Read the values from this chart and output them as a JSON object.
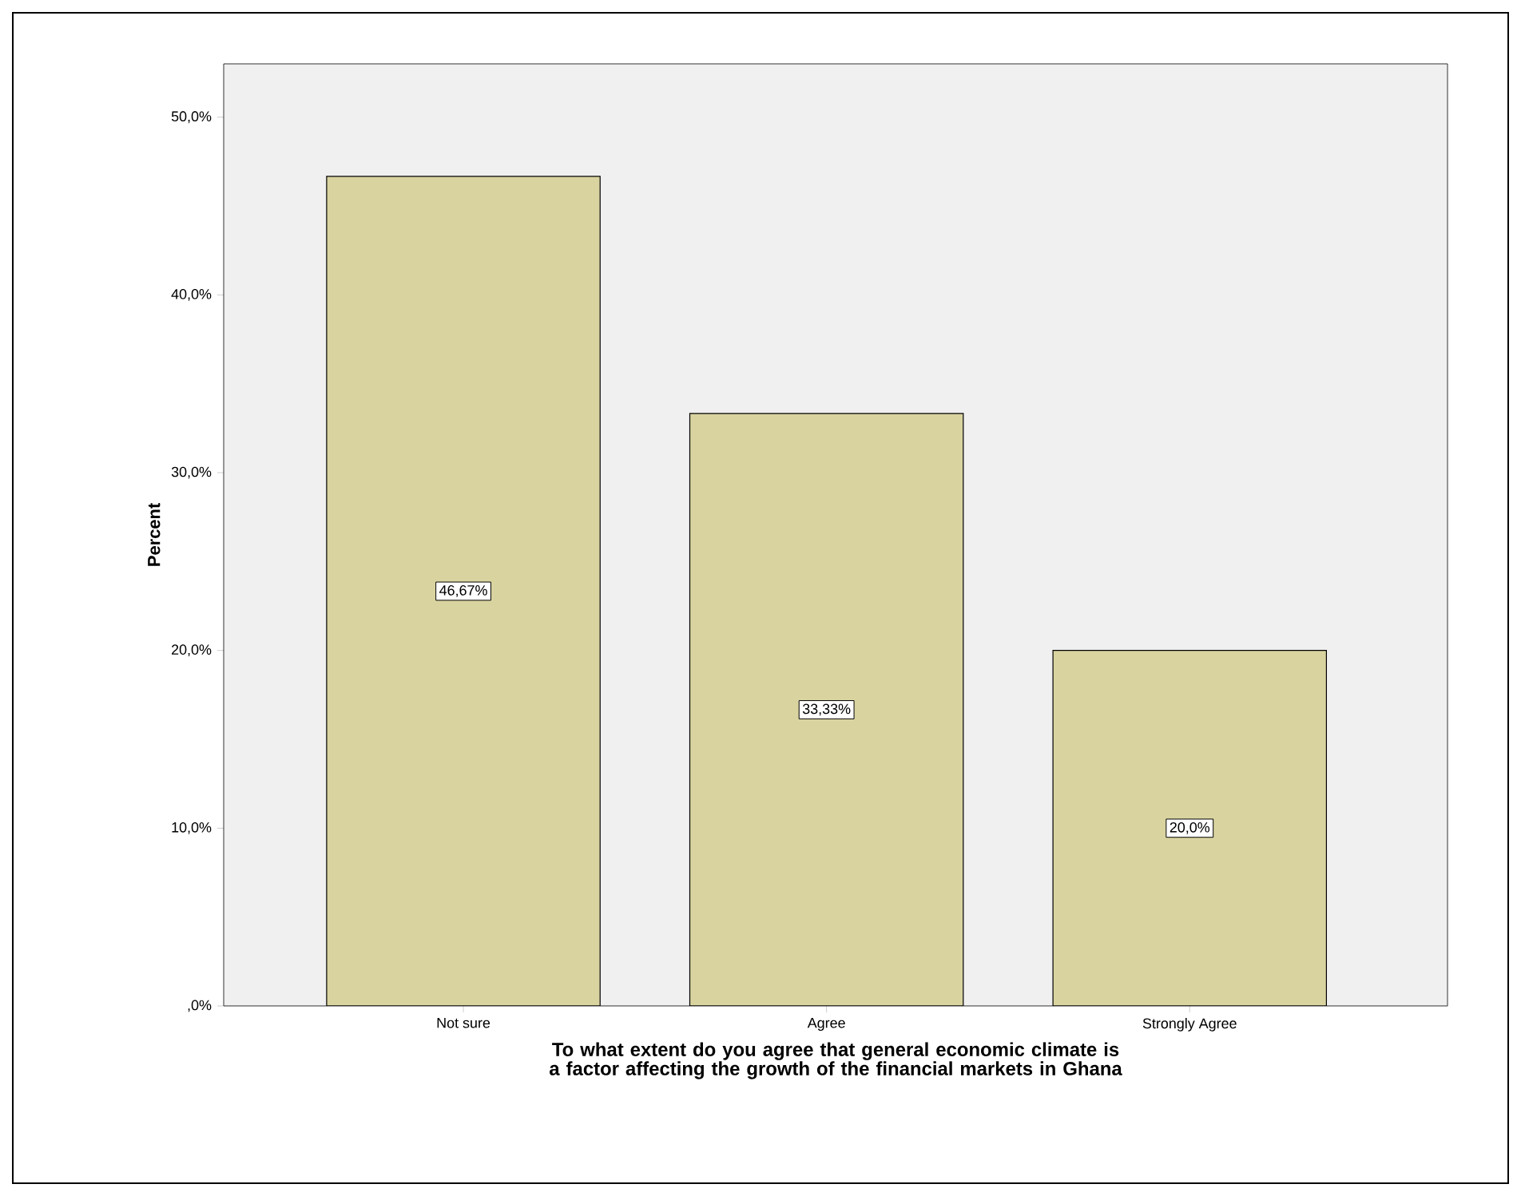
{
  "chart_data": {
    "type": "bar",
    "xlabel": "To what extent do you agree that general economic climate is a factor affecting the growth of the financial markets in Ghana",
    "ylabel": "Percent",
    "categories": [
      "Not sure",
      "Agree",
      "Strongly Agree"
    ],
    "values": [
      46.67,
      33.33,
      20.0
    ],
    "value_labels": [
      "46,67%",
      "33,33%",
      "20,0%"
    ],
    "color": "#d9d3a0",
    "ylim": [
      0,
      53
    ],
    "yticks": [
      {
        "value": 0,
        "label": ",0%"
      },
      {
        "value": 10,
        "label": "10,0%"
      },
      {
        "value": 20,
        "label": "20,0%"
      },
      {
        "value": 30,
        "label": "30,0%"
      },
      {
        "value": 40,
        "label": "40,0%"
      },
      {
        "value": 50,
        "label": "50,0%"
      }
    ]
  }
}
